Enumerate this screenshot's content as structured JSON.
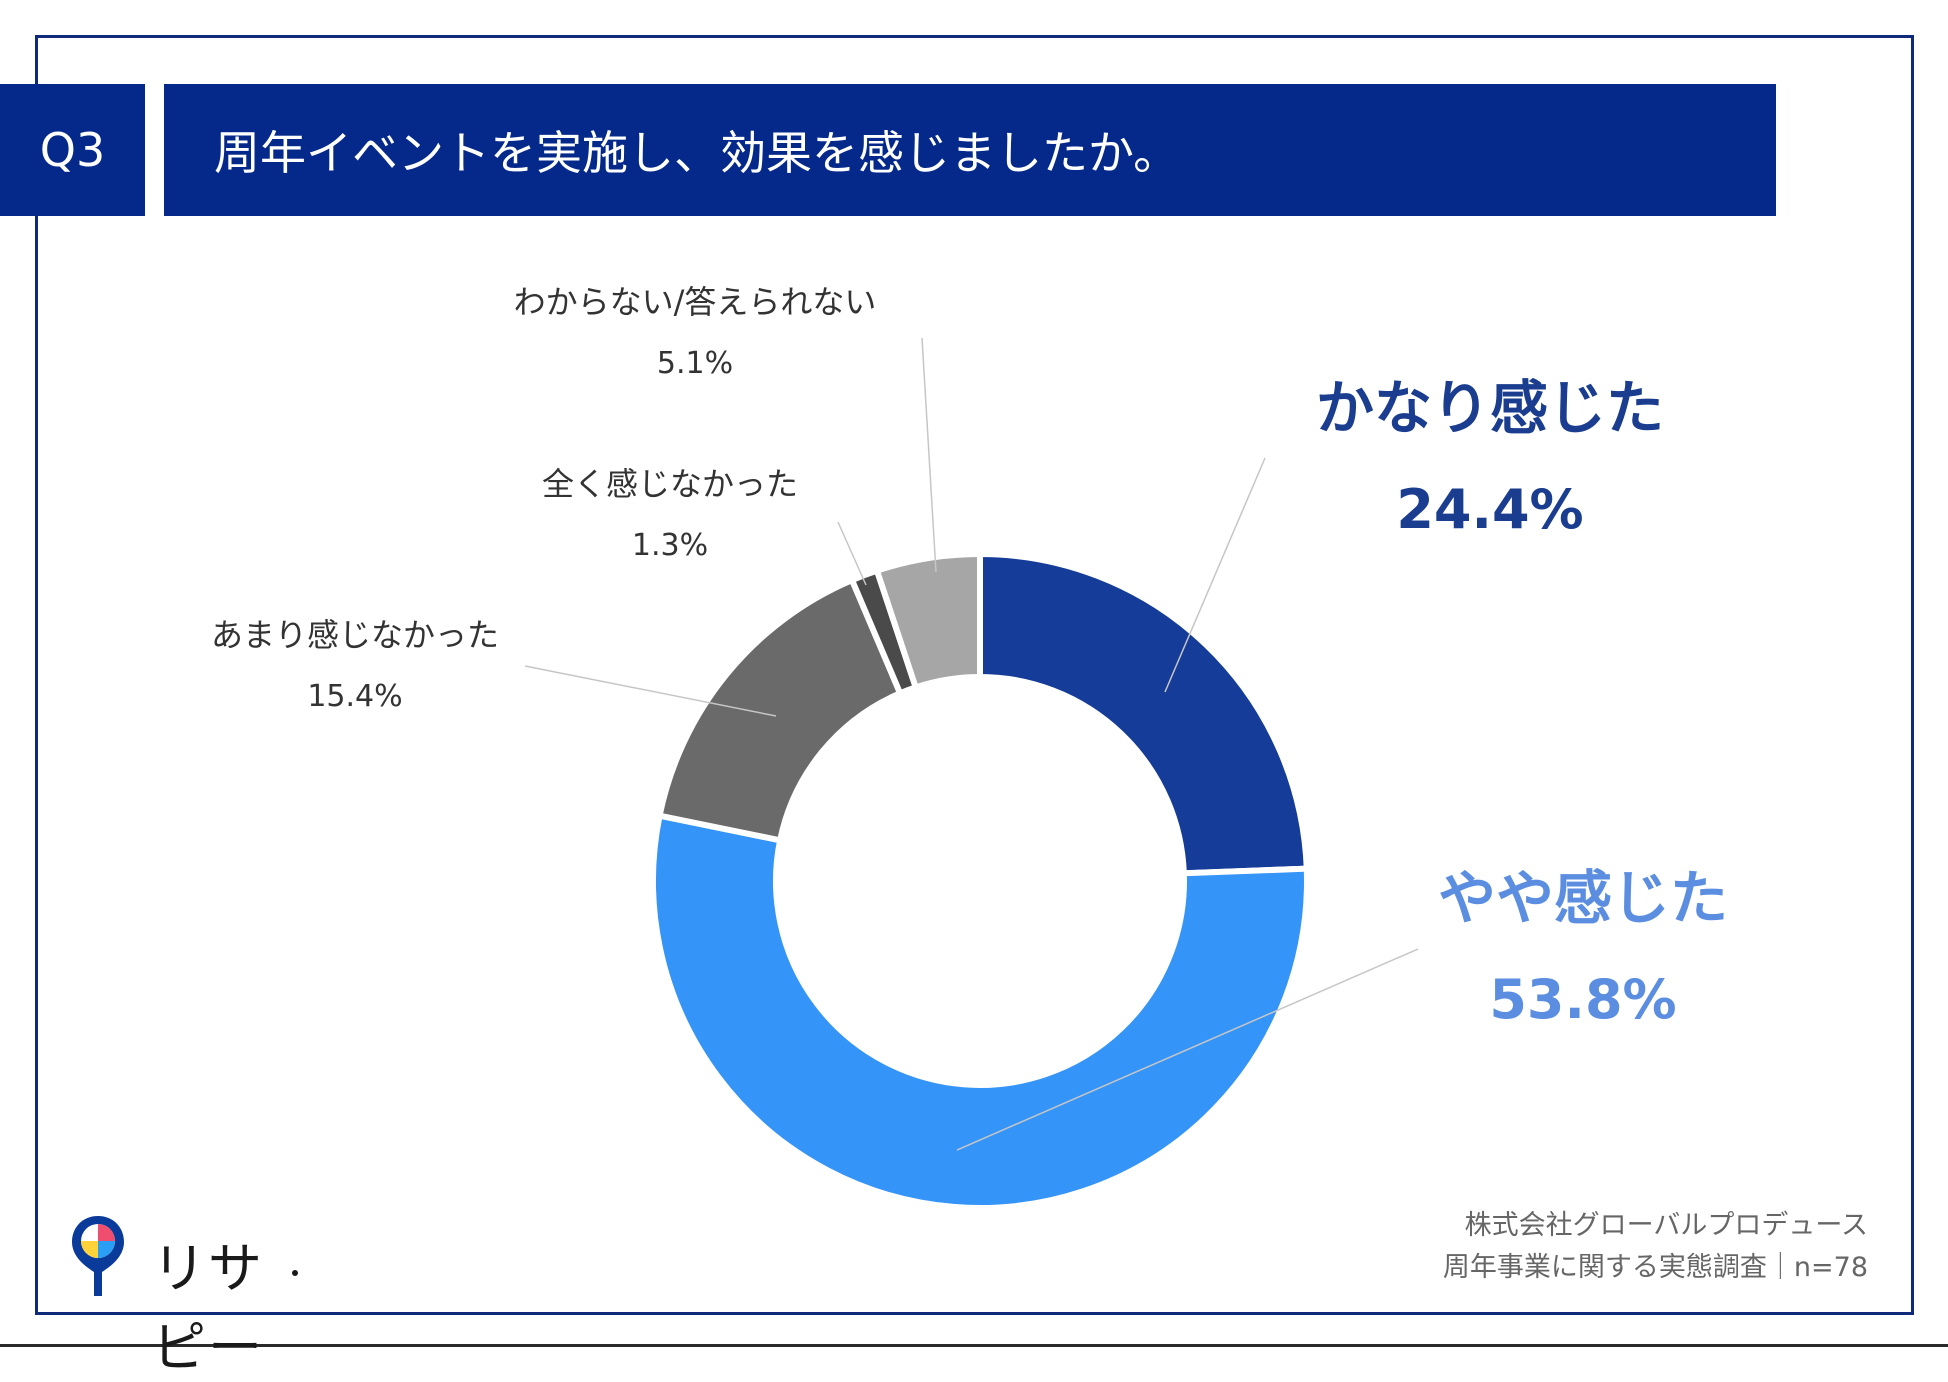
{
  "header": {
    "badge": "Q3",
    "question": "周年イベントを実施し、効果を感じましたか。"
  },
  "chart_data": {
    "type": "pie",
    "donut": true,
    "start_angle_deg": 0,
    "direction": "clockwise",
    "slices": [
      {
        "label": "かなり感じた",
        "value_text": "24.4%",
        "value": 24.4,
        "color": "#153c98",
        "label_color": "#1a3d8f",
        "label_size": "large"
      },
      {
        "label": "やや感じた",
        "value_text": "53.8%",
        "value": 53.8,
        "color": "#3594f7",
        "label_color": "#5b8ee0",
        "label_size": "large"
      },
      {
        "label": "あまり感じなかった",
        "value_text": "15.4%",
        "value": 15.4,
        "color": "#6a6a6a",
        "label_color": "#333333",
        "label_size": "small"
      },
      {
        "label": "全く感じなかった",
        "value_text": "1.3%",
        "value": 1.3,
        "color": "#4a4a4a",
        "label_color": "#333333",
        "label_size": "small"
      },
      {
        "label": "わからない/答えられない",
        "value_text": "5.1%",
        "value": 5.1,
        "color": "#a6a6a6",
        "label_color": "#333333",
        "label_size": "small"
      }
    ]
  },
  "logo": {
    "text": "リサピー"
  },
  "source": {
    "line1": "株式会社グローバルプロデュース",
    "line2": "周年事業に関する実態調査｜n=78"
  }
}
